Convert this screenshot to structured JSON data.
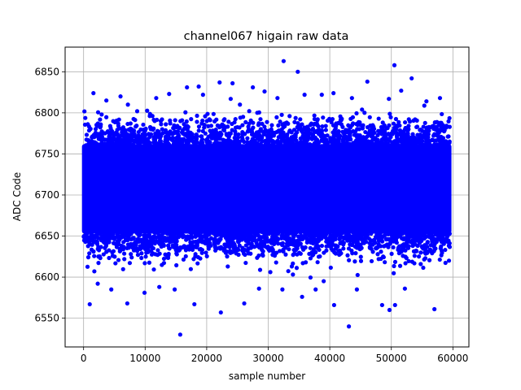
{
  "chart_data": {
    "type": "scatter",
    "title": "channel067 higain raw data",
    "xlabel": "sample number",
    "ylabel": "ADC Code",
    "xlim": [
      -3000,
      62600
    ],
    "ylim": [
      6515,
      6880
    ],
    "xticks": [
      0,
      10000,
      20000,
      30000,
      40000,
      50000,
      60000
    ],
    "yticks": [
      6550,
      6600,
      6650,
      6700,
      6750,
      6800,
      6850
    ],
    "grid": true,
    "marker_color": "#0000ff",
    "x_range_of_samples": [
      0,
      59500
    ],
    "dense_band": [
      6655,
      6760
    ],
    "series": [
      {
        "name": "",
        "outliers": [
          [
            32500,
            6863
          ],
          [
            34800,
            6850
          ],
          [
            50500,
            6858
          ],
          [
            53300,
            6842
          ],
          [
            46100,
            6838
          ],
          [
            22100,
            6837
          ],
          [
            24200,
            6836
          ],
          [
            27500,
            6831
          ],
          [
            15700,
            6530
          ],
          [
            43100,
            6540
          ],
          [
            22300,
            6557
          ],
          [
            57000,
            6561
          ],
          [
            1000,
            6567
          ],
          [
            7100,
            6568
          ],
          [
            35500,
            6576
          ],
          [
            40700,
            6566
          ],
          [
            48500,
            6566
          ],
          [
            49700,
            6560
          ],
          [
            50600,
            6566
          ],
          [
            12300,
            6588
          ],
          [
            14800,
            6585
          ],
          [
            26100,
            6568
          ],
          [
            28500,
            6586
          ],
          [
            32300,
            6585
          ],
          [
            4500,
            6585
          ],
          [
            2300,
            6592
          ],
          [
            9900,
            6581
          ],
          [
            18000,
            6567
          ],
          [
            37700,
            6585
          ],
          [
            44400,
            6585
          ],
          [
            52200,
            6586
          ],
          [
            1600,
            6824
          ],
          [
            6000,
            6820
          ],
          [
            16800,
            6831
          ],
          [
            18700,
            6832
          ],
          [
            19400,
            6822
          ],
          [
            29400,
            6826
          ],
          [
            38700,
            6822
          ],
          [
            40600,
            6824
          ],
          [
            43600,
            6818
          ],
          [
            49600,
            6817
          ],
          [
            51600,
            6827
          ],
          [
            57900,
            6818
          ],
          [
            11800,
            6818
          ],
          [
            13900,
            6823
          ],
          [
            23900,
            6817
          ],
          [
            35900,
            6822
          ],
          [
            7200,
            6810
          ],
          [
            3700,
            6815
          ],
          [
            25400,
            6810
          ],
          [
            31500,
            6818
          ],
          [
            55700,
            6814
          ]
        ]
      }
    ]
  }
}
